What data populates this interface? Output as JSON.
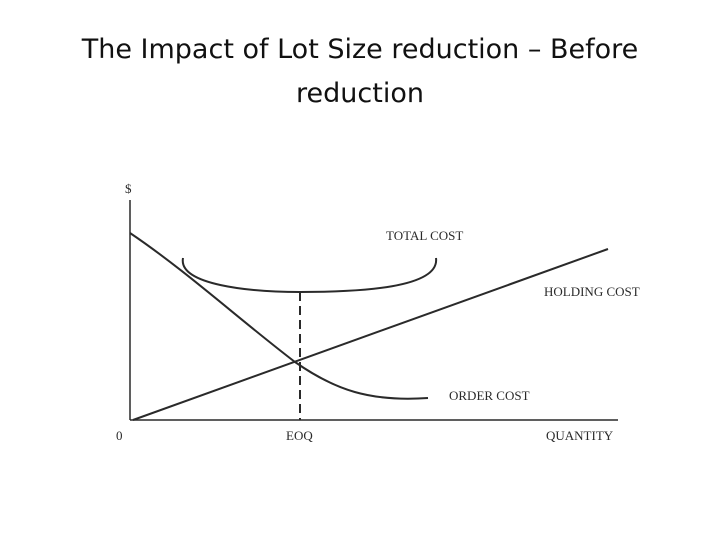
{
  "slide": {
    "title": "The Impact of Lot Size reduction – Before reduction"
  },
  "diagram": {
    "y_axis_label": "$",
    "origin_label": "0",
    "eoq_label": "EOQ",
    "x_axis_label": "QUANTITY",
    "total_cost_label": "TOTAL COST",
    "holding_cost_label": "HOLDING COST",
    "order_cost_label": "ORDER COST"
  },
  "colors": {
    "line": "#2a2a2a",
    "background": "#ffffff"
  }
}
